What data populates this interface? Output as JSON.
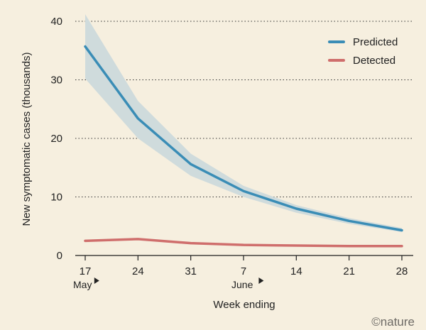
{
  "chart_data": {
    "type": "line",
    "title": "",
    "xlabel": "Week ending",
    "ylabel": "New symptomatic cases (thousands)",
    "x": [
      "17",
      "24",
      "31",
      "7",
      "14",
      "21",
      "28"
    ],
    "month_markers": [
      {
        "label": "May",
        "index": 0
      },
      {
        "label": "June",
        "index": 3
      }
    ],
    "ylim": [
      0,
      40
    ],
    "yticks": [
      0,
      10,
      20,
      30,
      40
    ],
    "grid": "horizontal-dotted",
    "legend_position": "top-right",
    "series": [
      {
        "name": "Predicted",
        "color": "#3a8db6",
        "values": [
          35.7,
          23.4,
          15.6,
          11.0,
          8.0,
          5.9,
          4.3
        ],
        "lower": [
          30.2,
          20.0,
          13.6,
          10.0,
          7.3,
          5.4,
          4.0
        ],
        "upper": [
          41.2,
          26.4,
          17.4,
          11.9,
          8.6,
          6.4,
          4.7
        ],
        "band_color": "#cfdbdc"
      },
      {
        "name": "Detected",
        "color": "#cf6e6c",
        "values": [
          2.5,
          2.8,
          2.1,
          1.8,
          1.7,
          1.6,
          1.6
        ]
      }
    ]
  },
  "credit": "©nature"
}
